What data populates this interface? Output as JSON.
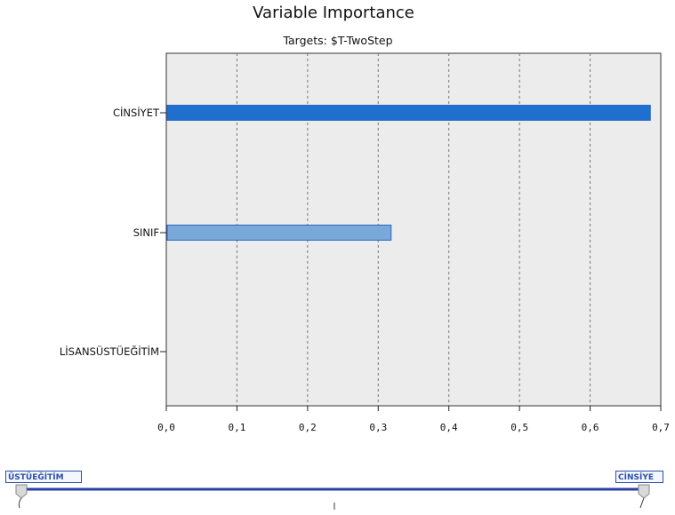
{
  "chart_data": {
    "type": "bar",
    "orientation": "horizontal",
    "title": "Variable Importance",
    "subtitle": "Targets: $T-TwoStep",
    "categories": [
      "CİNSİYET",
      "SINIF",
      "LİSANSÜSTÜEĞİTİM"
    ],
    "values": [
      0.684,
      0.317,
      0.0
    ],
    "xlim": [
      0.0,
      0.7
    ],
    "x_ticks": [
      "0,0",
      "0,1",
      "0,2",
      "0,3",
      "0,4",
      "0,5",
      "0,6",
      "0,7"
    ],
    "grid": "vertical dashed",
    "legend": "none",
    "colors": {
      "bar_primary_fill": "#1f6fcf",
      "bar_secondary_fill": "#7aa8d8",
      "bar_stroke": "#2a66c8",
      "plot_background": "#ececec",
      "gridline": "#777777"
    }
  },
  "slider": {
    "left_label": "ÜSTÜEĞİTİM",
    "right_label": "CİNSİYE",
    "track_color": "#2a3fa6"
  }
}
